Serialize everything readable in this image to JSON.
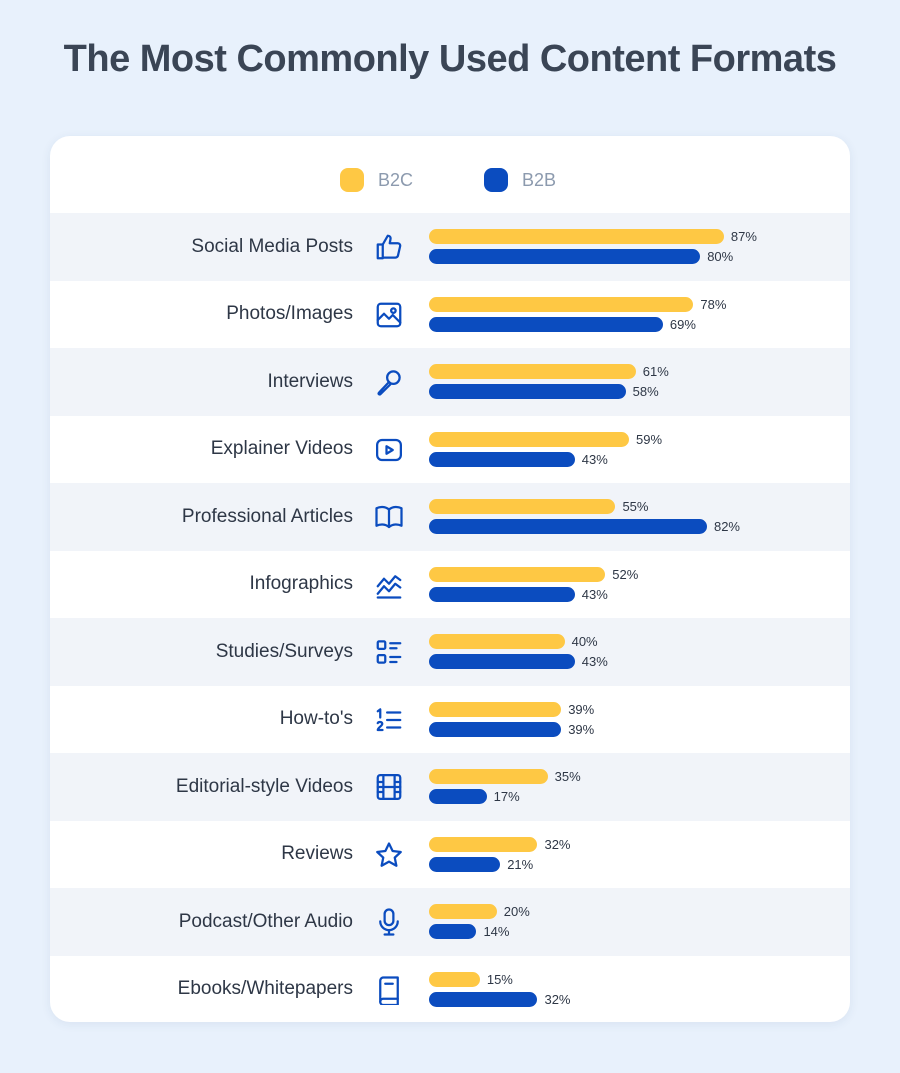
{
  "title": "The Most Commonly Used Content Formats",
  "legend": {
    "b2c_label": "B2C",
    "b2b_label": "B2B"
  },
  "colors": {
    "b2c": "#fec844",
    "b2b": "#0b4cbf",
    "background": "#e8f1fc",
    "alt_row": "#f1f4f9"
  },
  "chart_data": {
    "type": "bar",
    "orientation": "horizontal",
    "title": "The Most Commonly Used Content Formats",
    "xlim": [
      0,
      100
    ],
    "unit": "%",
    "legend_position": "top",
    "categories": [
      "Social Media Posts",
      "Photos/Images",
      "Interviews",
      "Explainer Videos",
      "Professional Articles",
      "Infographics",
      "Studies/Surveys",
      "How-to's",
      "Editorial-style Videos",
      "Reviews",
      "Podcast/Other Audio",
      "Ebooks/Whitepapers"
    ],
    "icons": [
      "thumbs-up-icon",
      "image-icon",
      "microphone-handheld-icon",
      "play-video-icon",
      "open-book-icon",
      "line-chart-icon",
      "checklist-icon",
      "numbered-list-icon",
      "film-icon",
      "star-icon",
      "microphone-icon",
      "ebook-icon"
    ],
    "series": [
      {
        "name": "B2C",
        "values": [
          87,
          78,
          61,
          59,
          55,
          52,
          40,
          39,
          35,
          32,
          20,
          15
        ]
      },
      {
        "name": "B2B",
        "values": [
          80,
          69,
          58,
          43,
          82,
          43,
          43,
          39,
          17,
          21,
          14,
          32
        ]
      }
    ]
  }
}
